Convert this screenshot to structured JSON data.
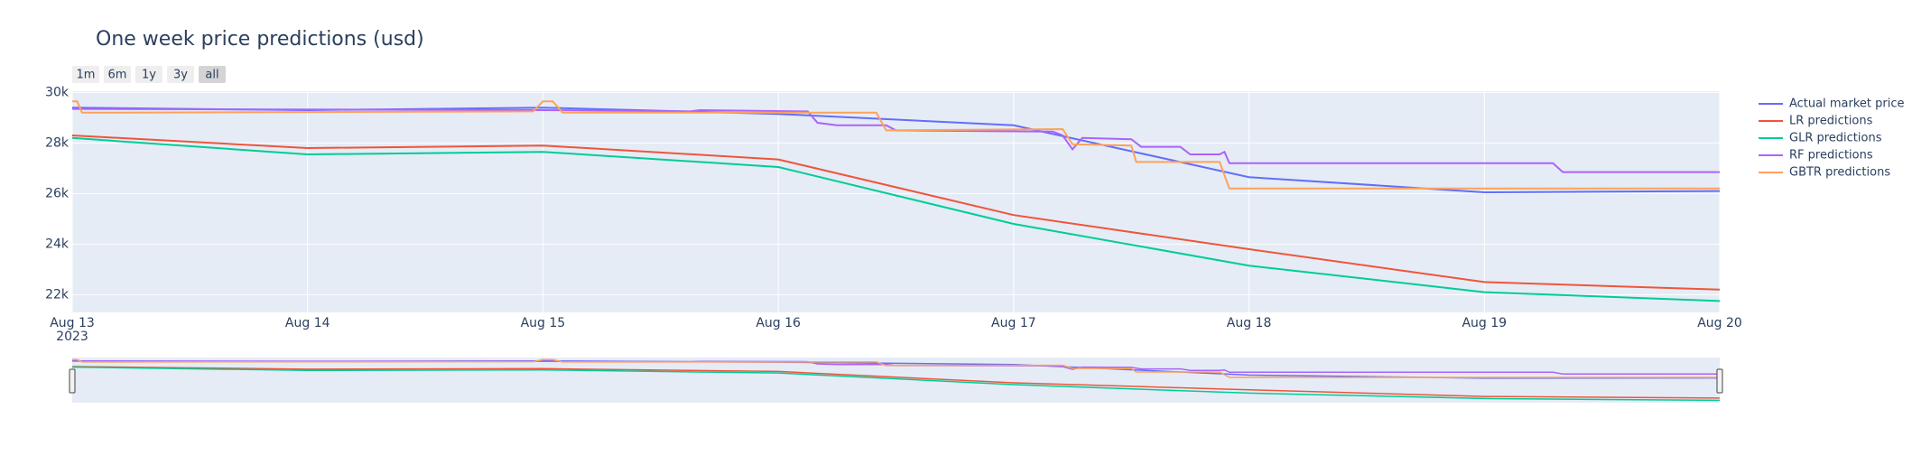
{
  "chart_data": {
    "type": "line",
    "title": "One week price predictions (usd)",
    "range_buttons": [
      "1m",
      "6m",
      "1y",
      "3y",
      "all"
    ],
    "active_button": "all",
    "ylim": [
      21300,
      30050
    ],
    "yticks": [
      {
        "value": 22000,
        "label": "22k"
      },
      {
        "value": 24000,
        "label": "24k"
      },
      {
        "value": 26000,
        "label": "26k"
      },
      {
        "value": 28000,
        "label": "28k"
      },
      {
        "value": 30000,
        "label": "30k"
      }
    ],
    "xlim": [
      "2023-08-13T00:00",
      "2023-08-20T00:00"
    ],
    "xticks": [
      {
        "value": "2023-08-13T00:00",
        "label": "Aug 13"
      },
      {
        "value": "2023-08-14T00:00",
        "label": "Aug 14"
      },
      {
        "value": "2023-08-15T00:00",
        "label": "Aug 15"
      },
      {
        "value": "2023-08-16T00:00",
        "label": "Aug 16"
      },
      {
        "value": "2023-08-17T00:00",
        "label": "Aug 17"
      },
      {
        "value": "2023-08-18T00:00",
        "label": "Aug 18"
      },
      {
        "value": "2023-08-19T00:00",
        "label": "Aug 19"
      },
      {
        "value": "2023-08-20T00:00",
        "label": "Aug 20"
      }
    ],
    "x_year_label": "2023",
    "grid": true,
    "legend": "right",
    "rangeslider": true,
    "series": [
      {
        "name": "Actual market price",
        "color": "#636efa",
        "x": [
          "2023-08-13T00:00",
          "2023-08-14T00:00",
          "2023-08-15T00:00",
          "2023-08-16T00:00",
          "2023-08-17T00:00",
          "2023-08-18T00:00",
          "2023-08-19T00:00",
          "2023-08-20T00:00"
        ],
        "values": [
          29400,
          29300,
          29400,
          29150,
          28700,
          26650,
          26050,
          26100
        ]
      },
      {
        "name": "LR predictions",
        "color": "#EF553B",
        "x": [
          "2023-08-13T00:00",
          "2023-08-14T00:00",
          "2023-08-15T00:00",
          "2023-08-16T00:00",
          "2023-08-17T00:00",
          "2023-08-18T00:00",
          "2023-08-19T00:00",
          "2023-08-20T00:00"
        ],
        "values": [
          28300,
          27800,
          27900,
          27350,
          25150,
          23800,
          22500,
          22200
        ]
      },
      {
        "name": "GLR predictions",
        "color": "#00cc96",
        "x": [
          "2023-08-13T00:00",
          "2023-08-14T00:00",
          "2023-08-15T00:00",
          "2023-08-16T00:00",
          "2023-08-17T00:00",
          "2023-08-18T00:00",
          "2023-08-19T00:00",
          "2023-08-20T00:00"
        ],
        "values": [
          28200,
          27550,
          27650,
          27050,
          24800,
          23150,
          22100,
          21750
        ]
      },
      {
        "name": "RF predictions",
        "color": "#ab63fa",
        "x": [
          "2023-08-13T00:00",
          "2023-08-15T00:00",
          "2023-08-15T15:00",
          "2023-08-15T16:00",
          "2023-08-16T03:00",
          "2023-08-16T04:00",
          "2023-08-16T06:00",
          "2023-08-16T11:00",
          "2023-08-16T12:00",
          "2023-08-17T04:00",
          "2023-08-17T05:00",
          "2023-08-17T06:00",
          "2023-08-17T07:00",
          "2023-08-17T12:00",
          "2023-08-17T13:00",
          "2023-08-17T17:00",
          "2023-08-17T18:00",
          "2023-08-17T21:00",
          "2023-08-17T21:30",
          "2023-08-17T22:00",
          "2023-08-19T07:00",
          "2023-08-19T08:00",
          "2023-08-20T00:00"
        ],
        "values": [
          29350,
          29300,
          29250,
          29300,
          29250,
          28800,
          28700,
          28700,
          28500,
          28450,
          28300,
          27750,
          28200,
          28150,
          27850,
          27850,
          27550,
          27550,
          27650,
          27200,
          27200,
          26850,
          26850
        ]
      },
      {
        "name": "GBTR predictions",
        "color": "#FFA15A",
        "x": [
          "2023-08-13T00:00",
          "2023-08-13T00:30",
          "2023-08-13T01:00",
          "2023-08-14T23:00",
          "2023-08-15T00:00",
          "2023-08-15T01:00",
          "2023-08-15T02:00",
          "2023-08-16T10:00",
          "2023-08-16T11:00",
          "2023-08-17T05:00",
          "2023-08-17T06:00",
          "2023-08-17T12:00",
          "2023-08-17T12:30",
          "2023-08-17T21:00",
          "2023-08-17T22:00",
          "2023-08-20T00:00"
        ],
        "values": [
          29650,
          29650,
          29200,
          29250,
          29650,
          29650,
          29200,
          29200,
          28500,
          28550,
          27950,
          27900,
          27250,
          27250,
          26200,
          26200
        ]
      }
    ]
  }
}
